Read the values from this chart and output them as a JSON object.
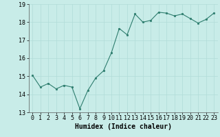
{
  "x": [
    0,
    1,
    2,
    3,
    4,
    5,
    6,
    7,
    8,
    9,
    10,
    11,
    12,
    13,
    14,
    15,
    16,
    17,
    18,
    19,
    20,
    21,
    22,
    23
  ],
  "y": [
    15.05,
    14.4,
    14.6,
    14.3,
    14.5,
    14.4,
    13.2,
    14.2,
    14.9,
    15.3,
    16.3,
    17.65,
    17.3,
    18.45,
    18.0,
    18.1,
    18.55,
    18.5,
    18.35,
    18.45,
    18.2,
    17.95,
    18.15,
    18.5
  ],
  "xlabel": "Humidex (Indice chaleur)",
  "ylim": [
    13.0,
    19.0
  ],
  "xlim": [
    -0.5,
    23.5
  ],
  "yticks": [
    13,
    14,
    15,
    16,
    17,
    18,
    19
  ],
  "xticks": [
    0,
    1,
    2,
    3,
    4,
    5,
    6,
    7,
    8,
    9,
    10,
    11,
    12,
    13,
    14,
    15,
    16,
    17,
    18,
    19,
    20,
    21,
    22,
    23
  ],
  "line_color": "#2e7d6e",
  "marker_color": "#2e7d6e",
  "bg_color": "#c8ece8",
  "grid_color": "#b0dcd8",
  "tick_fontsize": 6,
  "xlabel_fontsize": 7
}
